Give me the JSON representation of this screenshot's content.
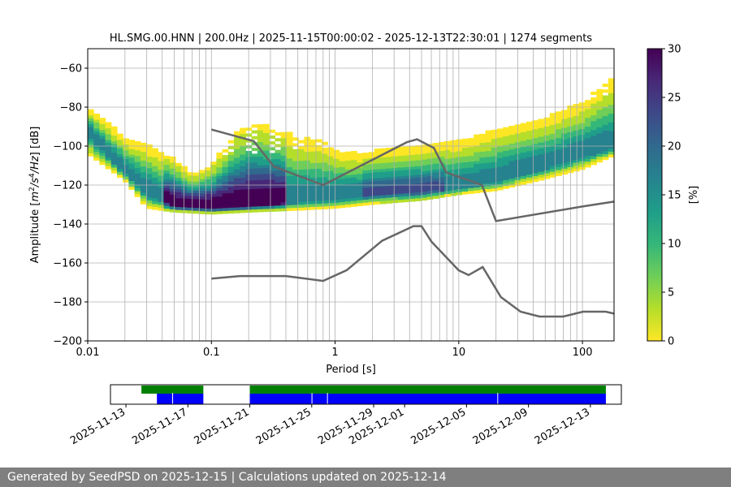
{
  "chart_data": {
    "type": "heatmap",
    "title": "HL.SMG.00.HNN | 200.0Hz | 2025-11-15T00:00:02 - 2025-12-13T22:30:01 | 1274 segments",
    "xlabel": "Period [s]",
    "ylabel_parts": [
      "Amplitude [",
      "m",
      "2",
      "/",
      "s",
      "4",
      "/",
      "Hz",
      "] [dB]"
    ],
    "x_scale": "log",
    "xlim": [
      0.01,
      180
    ],
    "ylim": [
      -200,
      -50
    ],
    "x_ticks": [
      {
        "v": 0.01,
        "label": "0.01"
      },
      {
        "v": 0.1,
        "label": "0.1"
      },
      {
        "v": 1,
        "label": "1"
      },
      {
        "v": 10,
        "label": "10"
      },
      {
        "v": 100,
        "label": "100"
      }
    ],
    "y_ticks": [
      {
        "v": -200,
        "label": "−200"
      },
      {
        "v": -180,
        "label": "−180"
      },
      {
        "v": -160,
        "label": "−160"
      },
      {
        "v": -140,
        "label": "−140"
      },
      {
        "v": -120,
        "label": "−120"
      },
      {
        "v": -100,
        "label": "−100"
      },
      {
        "v": -80,
        "label": "−80"
      },
      {
        "v": -60,
        "label": "−60"
      }
    ],
    "grid": true,
    "colorbar": {
      "label": "[%]",
      "range": [
        0,
        30
      ],
      "ticks": [
        {
          "v": 0,
          "label": "0"
        },
        {
          "v": 5,
          "label": "5"
        },
        {
          "v": 10,
          "label": "10"
        },
        {
          "v": 15,
          "label": "15"
        },
        {
          "v": 20,
          "label": "20"
        },
        {
          "v": 25,
          "label": "25"
        },
        {
          "v": 30,
          "label": "30"
        }
      ],
      "colors": [
        "#fde725",
        "#b5de2b",
        "#6ece58",
        "#35b779",
        "#1f9e89",
        "#26828e",
        "#31688e",
        "#3e4989",
        "#482878",
        "#440154"
      ]
    },
    "psd_ridge": [
      [
        0.01,
        -92
      ],
      [
        0.02,
        -113
      ],
      [
        0.03,
        -123
      ],
      [
        0.05,
        -130
      ],
      [
        0.1,
        -131
      ],
      [
        0.2,
        -130
      ],
      [
        0.3,
        -129
      ],
      [
        0.5,
        -128
      ],
      [
        1,
        -126
      ],
      [
        2,
        -124
      ],
      [
        5,
        -123
      ],
      [
        10,
        -121
      ],
      [
        20,
        -117
      ],
      [
        50,
        -110
      ],
      [
        100,
        -104
      ],
      [
        180,
        -100
      ]
    ],
    "reference_curves": [
      {
        "name": "NHNM",
        "color": "#666666",
        "points": [
          [
            0.1,
            -91.5
          ],
          [
            0.22,
            -97.4
          ],
          [
            0.32,
            -110.5
          ],
          [
            0.8,
            -120
          ],
          [
            3.8,
            -98
          ],
          [
            4.6,
            -96.5
          ],
          [
            6.3,
            -101
          ],
          [
            7.9,
            -113.5
          ],
          [
            15.4,
            -120
          ],
          [
            20,
            -138.5
          ],
          [
            100,
            -131
          ],
          [
            180,
            -128.5
          ]
        ]
      },
      {
        "name": "NLNM",
        "color": "#666666",
        "points": [
          [
            0.1,
            -168
          ],
          [
            0.17,
            -166.7
          ],
          [
            0.4,
            -166.7
          ],
          [
            0.8,
            -169.2
          ],
          [
            1.24,
            -163.7
          ],
          [
            2.4,
            -148.6
          ],
          [
            4.3,
            -141.1
          ],
          [
            5,
            -141.1
          ],
          [
            6,
            -149
          ],
          [
            10,
            -163.8
          ],
          [
            12,
            -166.2
          ],
          [
            15.6,
            -162.1
          ],
          [
            21.9,
            -177.5
          ],
          [
            31.6,
            -185
          ],
          [
            45,
            -187.5
          ],
          [
            70,
            -187.5
          ],
          [
            101,
            -185
          ],
          [
            154,
            -185
          ],
          [
            180,
            -186
          ]
        ]
      }
    ],
    "availability": {
      "axis_range": [
        "2025-11-12",
        "2025-12-15"
      ],
      "date_ticks": [
        "2025-11-13",
        "2025-11-17",
        "2025-11-21",
        "2025-11-25",
        "2025-11-29",
        "2025-12-01",
        "2025-12-05",
        "2025-12-09",
        "2025-12-13"
      ],
      "data_segments": [
        [
          "2025-11-14",
          "2025-11-18"
        ],
        [
          "2025-11-21",
          "2025-12-14"
        ]
      ],
      "psd_segments": [
        [
          "2025-11-15",
          "2025-11-18"
        ],
        [
          "2025-11-21",
          "2025-12-14"
        ]
      ],
      "gaps": [
        "2025-11-16",
        "2025-11-25",
        "2025-11-26",
        "2025-12-07"
      ],
      "data_color": "#008000",
      "psd_color": "#0000ff"
    }
  },
  "footer": {
    "text": "Generated by SeedPSD on 2025-12-15 | Calculations updated on 2025-12-14"
  }
}
